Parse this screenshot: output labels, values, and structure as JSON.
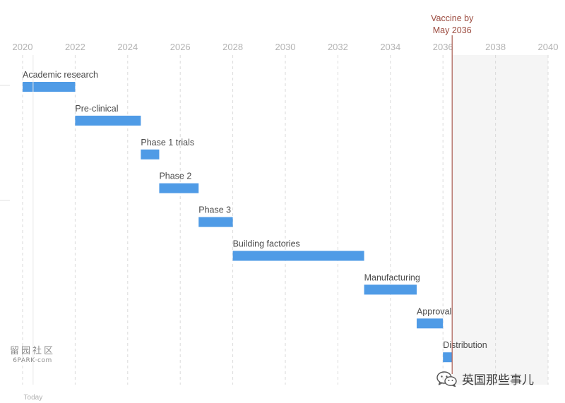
{
  "chart_data": {
    "type": "bar",
    "subtype": "gantt",
    "x_axis": {
      "ticks": [
        "2020",
        "2022",
        "2024",
        "2026",
        "2028",
        "2030",
        "2032",
        "2034",
        "2036",
        "2038",
        "2040"
      ],
      "range": [
        2020,
        2040
      ],
      "grid": true,
      "grid_style": "dashed vertical"
    },
    "tasks": [
      {
        "name": "Academic research",
        "start": 2020.0,
        "end": 2022.0
      },
      {
        "name": "Pre-clinical",
        "start": 2022.0,
        "end": 2024.5
      },
      {
        "name": "Phase 1 trials",
        "start": 2024.5,
        "end": 2025.2
      },
      {
        "name": "Phase 2",
        "start": 2025.2,
        "end": 2026.7
      },
      {
        "name": "Phase 3",
        "start": 2026.7,
        "end": 2028.0
      },
      {
        "name": "Building factories",
        "start": 2028.0,
        "end": 2033.0
      },
      {
        "name": "Manufacturing",
        "start": 2033.0,
        "end": 2035.0
      },
      {
        "name": "Approval",
        "start": 2035.0,
        "end": 2036.0
      },
      {
        "name": "Distribution",
        "start": 2036.0,
        "end": 2036.35
      }
    ],
    "today": {
      "label": "Today",
      "x": 2020.4
    },
    "marker": {
      "line1": "Vaccine by",
      "line2": "May 2036",
      "x": 2036.35
    },
    "shaded_after_marker": true,
    "colors": {
      "bar": "#4f9be6",
      "marker": "#b0685e",
      "marker_text": "#9b4a3e",
      "grid": "#dadada",
      "shade": "#f5f5f5",
      "tick_text": "#b3b3b3",
      "label_text": "#4a4a4a"
    }
  },
  "watermarks": {
    "left_glyphs": "留园社区",
    "left_site": "6PARK·com",
    "right_icon": "wechat-icon",
    "right_text": "英国那些事儿"
  }
}
